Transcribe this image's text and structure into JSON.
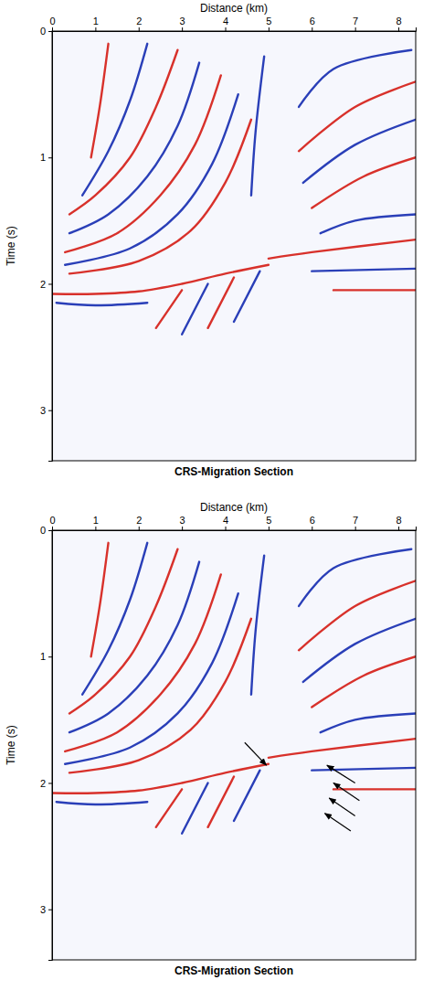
{
  "chart_data": [
    {
      "type": "line",
      "title": "CRS-Migration Section",
      "x_label": "Distance (km)",
      "y_label": "Time (s)",
      "xlim": [
        0,
        8.4
      ],
      "xticks": [
        0,
        1,
        2,
        3,
        4,
        5,
        6,
        7,
        8
      ],
      "ylim": [
        0,
        3.4
      ],
      "yticks": [
        0,
        1,
        2,
        3
      ],
      "series": [
        {
          "color": "#d8312b",
          "x": [
            1.3,
            1.1,
            0.9
          ],
          "values": [
            0.1,
            0.6,
            1.0
          ]
        },
        {
          "color": "#2a3fb8",
          "x": [
            2.2,
            1.8,
            1.3,
            0.7
          ],
          "values": [
            0.1,
            0.55,
            0.95,
            1.3
          ]
        },
        {
          "color": "#d8312b",
          "x": [
            2.9,
            2.4,
            1.8,
            1.0,
            0.4
          ],
          "values": [
            0.15,
            0.6,
            1.0,
            1.3,
            1.45
          ]
        },
        {
          "color": "#2a3fb8",
          "x": [
            3.4,
            2.9,
            2.2,
            1.3,
            0.4
          ],
          "values": [
            0.25,
            0.75,
            1.15,
            1.45,
            1.6
          ]
        },
        {
          "color": "#d8312b",
          "x": [
            3.9,
            3.3,
            2.5,
            1.5,
            0.3
          ],
          "values": [
            0.35,
            0.9,
            1.3,
            1.6,
            1.75
          ]
        },
        {
          "color": "#2a3fb8",
          "x": [
            4.3,
            3.7,
            2.9,
            1.8,
            0.3
          ],
          "values": [
            0.5,
            1.05,
            1.45,
            1.72,
            1.85
          ]
        },
        {
          "color": "#d8312b",
          "x": [
            4.6,
            4.0,
            3.2,
            2.0,
            0.4
          ],
          "values": [
            0.7,
            1.2,
            1.58,
            1.82,
            1.92
          ]
        },
        {
          "color": "#2a3fb8",
          "x": [
            4.9,
            4.7,
            4.6
          ],
          "values": [
            0.2,
            0.8,
            1.3
          ]
        },
        {
          "color": "#2a3fb8",
          "x": [
            8.3,
            6.5,
            5.7
          ],
          "values": [
            0.15,
            0.3,
            0.6
          ]
        },
        {
          "color": "#d8312b",
          "x": [
            8.4,
            7.0,
            5.7
          ],
          "values": [
            0.4,
            0.6,
            0.95
          ]
        },
        {
          "color": "#2a3fb8",
          "x": [
            8.4,
            7.0,
            5.8
          ],
          "values": [
            0.7,
            0.9,
            1.2
          ]
        },
        {
          "color": "#d8312b",
          "x": [
            8.4,
            7.2,
            6.0
          ],
          "values": [
            1.0,
            1.15,
            1.4
          ]
        },
        {
          "color": "#2a3fb8",
          "x": [
            8.4,
            7.0,
            6.2
          ],
          "values": [
            1.45,
            1.5,
            1.6
          ]
        },
        {
          "color": "#d8312b",
          "x": [
            8.4,
            6.0,
            5.0
          ],
          "values": [
            1.65,
            1.75,
            1.8
          ]
        },
        {
          "color": "#2a3fb8",
          "x": [
            8.4,
            6.0
          ],
          "values": [
            1.88,
            1.9
          ]
        },
        {
          "color": "#d8312b",
          "x": [
            8.4,
            6.5
          ],
          "values": [
            2.05,
            2.05
          ]
        },
        {
          "color": "#d8312b",
          "x": [
            0.0,
            1.0,
            2.0,
            3.0,
            4.0,
            5.0
          ],
          "values": [
            2.08,
            2.08,
            2.06,
            2.0,
            1.92,
            1.85
          ]
        },
        {
          "color": "#2a3fb8",
          "x": [
            0.1,
            1.0,
            2.2
          ],
          "values": [
            2.15,
            2.17,
            2.15
          ]
        },
        {
          "color": "#d8312b",
          "x": [
            3.0,
            2.4
          ],
          "values": [
            2.05,
            2.35
          ]
        },
        {
          "color": "#2a3fb8",
          "x": [
            3.6,
            3.0
          ],
          "values": [
            2.0,
            2.4
          ]
        },
        {
          "color": "#d8312b",
          "x": [
            4.2,
            3.6
          ],
          "values": [
            1.95,
            2.35
          ]
        },
        {
          "color": "#2a3fb8",
          "x": [
            4.8,
            4.2
          ],
          "values": [
            1.9,
            2.3
          ]
        }
      ]
    },
    {
      "type": "line",
      "title": "CRS-Migration Section",
      "x_label": "Distance (km)",
      "y_label": "Time (s)",
      "xlim": [
        0,
        8.4
      ],
      "xticks": [
        0,
        1,
        2,
        3,
        4,
        5,
        6,
        7,
        8
      ],
      "ylim": [
        0,
        3.4
      ],
      "yticks": [
        0,
        1,
        2,
        3
      ],
      "series": [
        {
          "color": "#d8312b",
          "x": [
            1.3,
            1.1,
            0.9
          ],
          "values": [
            0.1,
            0.6,
            1.0
          ]
        },
        {
          "color": "#2a3fb8",
          "x": [
            2.2,
            1.8,
            1.3,
            0.7
          ],
          "values": [
            0.1,
            0.55,
            0.95,
            1.3
          ]
        },
        {
          "color": "#d8312b",
          "x": [
            2.9,
            2.4,
            1.8,
            1.0,
            0.4
          ],
          "values": [
            0.15,
            0.6,
            1.0,
            1.3,
            1.45
          ]
        },
        {
          "color": "#2a3fb8",
          "x": [
            3.4,
            2.9,
            2.2,
            1.3,
            0.4
          ],
          "values": [
            0.25,
            0.75,
            1.15,
            1.45,
            1.6
          ]
        },
        {
          "color": "#d8312b",
          "x": [
            3.9,
            3.3,
            2.5,
            1.5,
            0.3
          ],
          "values": [
            0.35,
            0.9,
            1.3,
            1.6,
            1.75
          ]
        },
        {
          "color": "#2a3fb8",
          "x": [
            4.3,
            3.7,
            2.9,
            1.8,
            0.3
          ],
          "values": [
            0.5,
            1.05,
            1.45,
            1.72,
            1.85
          ]
        },
        {
          "color": "#d8312b",
          "x": [
            4.6,
            4.0,
            3.2,
            2.0,
            0.4
          ],
          "values": [
            0.7,
            1.2,
            1.58,
            1.82,
            1.92
          ]
        },
        {
          "color": "#2a3fb8",
          "x": [
            4.9,
            4.7,
            4.6
          ],
          "values": [
            0.2,
            0.8,
            1.3
          ]
        },
        {
          "color": "#2a3fb8",
          "x": [
            8.3,
            6.5,
            5.7
          ],
          "values": [
            0.15,
            0.3,
            0.6
          ]
        },
        {
          "color": "#d8312b",
          "x": [
            8.4,
            7.0,
            5.7
          ],
          "values": [
            0.4,
            0.6,
            0.95
          ]
        },
        {
          "color": "#2a3fb8",
          "x": [
            8.4,
            7.0,
            5.8
          ],
          "values": [
            0.7,
            0.9,
            1.2
          ]
        },
        {
          "color": "#d8312b",
          "x": [
            8.4,
            7.2,
            6.0
          ],
          "values": [
            1.0,
            1.15,
            1.4
          ]
        },
        {
          "color": "#2a3fb8",
          "x": [
            8.4,
            7.0,
            6.2
          ],
          "values": [
            1.45,
            1.5,
            1.6
          ]
        },
        {
          "color": "#d8312b",
          "x": [
            8.4,
            6.0,
            5.0
          ],
          "values": [
            1.65,
            1.75,
            1.8
          ]
        },
        {
          "color": "#2a3fb8",
          "x": [
            8.4,
            6.0
          ],
          "values": [
            1.88,
            1.9
          ]
        },
        {
          "color": "#d8312b",
          "x": [
            8.4,
            6.5
          ],
          "values": [
            2.05,
            2.05
          ]
        },
        {
          "color": "#d8312b",
          "x": [
            0.0,
            1.0,
            2.0,
            3.0,
            4.0,
            5.0
          ],
          "values": [
            2.08,
            2.08,
            2.06,
            2.0,
            1.92,
            1.85
          ]
        },
        {
          "color": "#2a3fb8",
          "x": [
            0.1,
            1.0,
            2.2
          ],
          "values": [
            2.15,
            2.17,
            2.15
          ]
        },
        {
          "color": "#d8312b",
          "x": [
            3.0,
            2.4
          ],
          "values": [
            2.05,
            2.35
          ]
        },
        {
          "color": "#2a3fb8",
          "x": [
            3.6,
            3.0
          ],
          "values": [
            2.0,
            2.4
          ]
        },
        {
          "color": "#d8312b",
          "x": [
            4.2,
            3.6
          ],
          "values": [
            1.95,
            2.35
          ]
        },
        {
          "color": "#2a3fb8",
          "x": [
            4.8,
            4.2
          ],
          "values": [
            1.9,
            2.3
          ]
        }
      ],
      "arrows": [
        {
          "from": [
            4.45,
            1.68
          ],
          "to": [
            4.95,
            1.86
          ]
        },
        {
          "from": [
            7.0,
            2.0
          ],
          "to": [
            6.35,
            1.86
          ]
        },
        {
          "from": [
            7.1,
            2.14
          ],
          "to": [
            6.5,
            2.0
          ]
        },
        {
          "from": [
            7.0,
            2.26
          ],
          "to": [
            6.4,
            2.12
          ]
        },
        {
          "from": [
            6.9,
            2.38
          ],
          "to": [
            6.3,
            2.24
          ]
        }
      ]
    }
  ]
}
